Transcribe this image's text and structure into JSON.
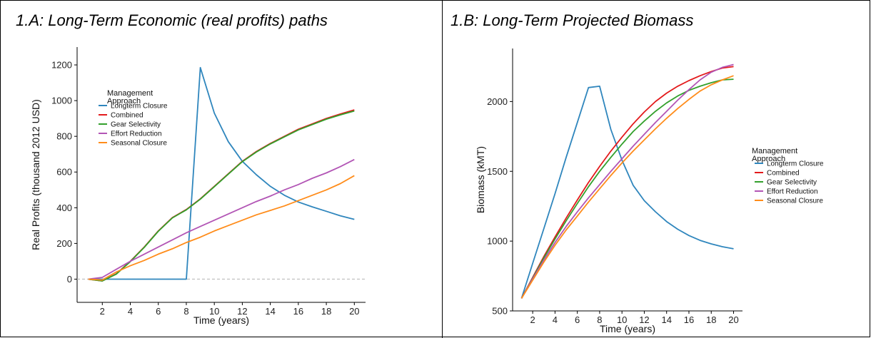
{
  "chart_data": [
    {
      "type": "line",
      "title": "1.A: Long-Term Economic (real profits) paths",
      "xlabel": "Time (years)",
      "ylabel": "Real Profits (thousand 2012 USD)",
      "xlim": [
        0.2,
        20.8
      ],
      "ylim": [
        -130,
        1300
      ],
      "xticks": [
        2,
        4,
        6,
        8,
        10,
        12,
        14,
        16,
        18,
        20
      ],
      "yticks": [
        0,
        200,
        400,
        600,
        800,
        1000,
        1200
      ],
      "reference_line": {
        "y": 0,
        "style": "dashed",
        "color": "#bdbdbd"
      },
      "grid": false,
      "legend": {
        "title_lines": [
          "Management",
          "Approach"
        ],
        "position": "top-left"
      },
      "series": [
        {
          "name": "Longterm Closure",
          "color": "#2f86bd",
          "x": [
            1,
            2,
            3,
            4,
            5,
            6,
            7,
            8,
            9,
            10,
            11,
            12,
            13,
            14,
            15,
            16,
            17,
            18,
            19,
            20
          ],
          "y": [
            0,
            0,
            0,
            0,
            0,
            0,
            0,
            0,
            1185,
            930,
            770,
            660,
            585,
            520,
            470,
            432,
            405,
            380,
            355,
            335
          ]
        },
        {
          "name": "Combined",
          "color": "#e31a1c",
          "x": [
            1,
            2,
            3,
            4,
            5,
            6,
            7,
            8,
            9,
            10,
            11,
            12,
            13,
            14,
            15,
            16,
            17,
            18,
            19,
            20
          ],
          "y": [
            0,
            -10,
            30,
            100,
            180,
            270,
            345,
            390,
            450,
            520,
            590,
            660,
            715,
            760,
            800,
            840,
            870,
            900,
            925,
            948
          ]
        },
        {
          "name": "Gear Selectivity",
          "color": "#33a02c",
          "x": [
            1,
            2,
            3,
            4,
            5,
            6,
            7,
            8,
            9,
            10,
            11,
            12,
            13,
            14,
            15,
            16,
            17,
            18,
            19,
            20
          ],
          "y": [
            0,
            -10,
            28,
            98,
            178,
            268,
            343,
            388,
            448,
            518,
            588,
            658,
            712,
            757,
            797,
            836,
            866,
            896,
            920,
            942
          ]
        },
        {
          "name": "Effort Reduction",
          "color": "#b255b5",
          "x": [
            1,
            2,
            3,
            4,
            5,
            6,
            7,
            8,
            9,
            10,
            11,
            12,
            13,
            14,
            15,
            16,
            17,
            18,
            19,
            20
          ],
          "y": [
            0,
            10,
            55,
            100,
            140,
            180,
            220,
            260,
            295,
            330,
            365,
            400,
            435,
            465,
            500,
            530,
            565,
            595,
            630,
            670
          ]
        },
        {
          "name": "Seasonal Closure",
          "color": "#ff8c1a",
          "x": [
            1,
            2,
            3,
            4,
            5,
            6,
            7,
            8,
            9,
            10,
            11,
            12,
            13,
            14,
            15,
            16,
            17,
            18,
            19,
            20
          ],
          "y": [
            0,
            -5,
            40,
            75,
            105,
            140,
            170,
            205,
            235,
            270,
            300,
            330,
            360,
            385,
            410,
            440,
            470,
            500,
            535,
            580
          ]
        }
      ]
    },
    {
      "type": "line",
      "title": "1.B: Long-Term Projected Biomass",
      "xlabel": "Time (years)",
      "ylabel": "Biomass (kMT)",
      "xlim": [
        0.2,
        20.8
      ],
      "ylim": [
        500,
        2380
      ],
      "xticks": [
        2,
        4,
        6,
        8,
        10,
        12,
        14,
        16,
        18,
        20
      ],
      "yticks": [
        500,
        1000,
        1500,
        2000
      ],
      "grid": false,
      "legend": {
        "title_lines": [
          "Management",
          "Approach"
        ],
        "position": "right"
      },
      "series": [
        {
          "name": "Longterm Closure",
          "color": "#2f86bd",
          "x": [
            1,
            2,
            3,
            4,
            5,
            6,
            7,
            8,
            9,
            10,
            11,
            12,
            13,
            14,
            15,
            16,
            17,
            18,
            19,
            20
          ],
          "y": [
            590,
            840,
            1090,
            1340,
            1600,
            1850,
            2100,
            2110,
            1800,
            1580,
            1400,
            1290,
            1210,
            1140,
            1085,
            1040,
            1005,
            980,
            960,
            945
          ]
        },
        {
          "name": "Combined",
          "color": "#e31a1c",
          "x": [
            1,
            2,
            3,
            4,
            5,
            6,
            7,
            8,
            9,
            10,
            11,
            12,
            13,
            14,
            15,
            16,
            17,
            18,
            19,
            20
          ],
          "y": [
            590,
            740,
            890,
            1030,
            1165,
            1295,
            1420,
            1535,
            1645,
            1745,
            1840,
            1925,
            2000,
            2060,
            2110,
            2150,
            2185,
            2215,
            2240,
            2250
          ]
        },
        {
          "name": "Gear Selectivity",
          "color": "#33a02c",
          "x": [
            1,
            2,
            3,
            4,
            5,
            6,
            7,
            8,
            9,
            10,
            11,
            12,
            13,
            14,
            15,
            16,
            17,
            18,
            19,
            20
          ],
          "y": [
            590,
            735,
            880,
            1015,
            1145,
            1270,
            1390,
            1500,
            1600,
            1695,
            1785,
            1860,
            1930,
            1990,
            2040,
            2080,
            2110,
            2135,
            2155,
            2160
          ]
        },
        {
          "name": "Effort Reduction",
          "color": "#b255b5",
          "x": [
            1,
            2,
            3,
            4,
            5,
            6,
            7,
            8,
            9,
            10,
            11,
            12,
            13,
            14,
            15,
            16,
            17,
            18,
            19,
            20
          ],
          "y": [
            590,
            730,
            865,
            990,
            1105,
            1210,
            1310,
            1405,
            1500,
            1590,
            1680,
            1765,
            1850,
            1930,
            2010,
            2085,
            2155,
            2210,
            2245,
            2265
          ]
        },
        {
          "name": "Seasonal Closure",
          "color": "#ff8c1a",
          "x": [
            1,
            2,
            3,
            4,
            5,
            6,
            7,
            8,
            9,
            10,
            11,
            12,
            13,
            14,
            15,
            16,
            17,
            18,
            19,
            20
          ],
          "y": [
            590,
            720,
            850,
            970,
            1080,
            1180,
            1280,
            1375,
            1470,
            1560,
            1645,
            1725,
            1805,
            1880,
            1950,
            2015,
            2075,
            2120,
            2155,
            2185
          ]
        }
      ]
    }
  ]
}
